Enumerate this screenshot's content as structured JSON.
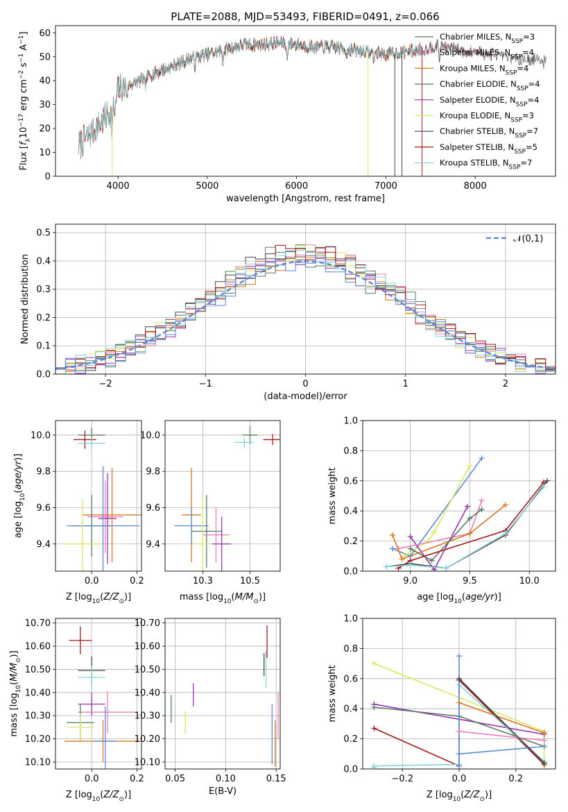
{
  "figure_title": "PLATE=2088, MJD=53493, FIBERID=0491, z=0.066",
  "colors": {
    "Chabrier MILES": "#5a7d5a",
    "Salpeter MILES": "#e87fb8",
    "Kroupa MILES": "#d9761f",
    "Chabrier ELODIE": "#52795e",
    "Salpeter ELODIE": "#9b2fae",
    "Kroupa ELODIE": "#d7e85e",
    "Chabrier STELIB": "#444444",
    "Salpeter STELIB": "#a4161a",
    "Kroupa STELIB": "#86d4dc",
    "blue_model": "#5b87d8"
  },
  "chart_data": [
    {
      "id": "spectrum",
      "type": "line",
      "title": "PLATE=2088, MJD=53493, FIBERID=0491, z=0.066",
      "xlabel": "wavelength [Angstrom, rest frame]",
      "ylabel": "Flux [f_λ 10^-17 erg cm^-2 s^-1 A^-1]",
      "xlim": [
        3300,
        8900
      ],
      "ylim": [
        0,
        63
      ],
      "xticks": [
        4000,
        5000,
        6000,
        7000,
        8000
      ],
      "yticks": [
        0,
        10,
        20,
        30,
        40,
        50,
        60
      ],
      "grid": false,
      "legend_position": "top-right",
      "series": [
        {
          "name": "Chabrier MILES, N_SSP=3",
          "color": "#5a7d5a",
          "wave_range": [
            3560,
            8200
          ]
        },
        {
          "name": "Salpeter MILES, N_SSP=4",
          "color": "#e87fb8",
          "wave_range": [
            3560,
            8200
          ]
        },
        {
          "name": "Kroupa MILES, N_SSP=4",
          "color": "#d9761f",
          "wave_range": [
            3560,
            7400
          ]
        },
        {
          "name": "Chabrier ELODIE, N_SSP=4",
          "color": "#52795e",
          "wave_range": [
            3900,
            6800
          ]
        },
        {
          "name": "Salpeter ELODIE, N_SSP=4",
          "color": "#9b2fae",
          "wave_range": [
            3900,
            6800
          ]
        },
        {
          "name": "Kroupa ELODIE, N_SSP=3",
          "color": "#d7e85e",
          "wave_range": [
            3900,
            6800
          ]
        },
        {
          "name": "Chabrier STELIB, N_SSP=7",
          "color": "#444444",
          "wave_range": [
            3560,
            8800
          ]
        },
        {
          "name": "Salpeter STELIB, N_SSP=5",
          "color": "#a4161a",
          "wave_range": [
            3560,
            7400
          ]
        },
        {
          "name": "Kroupa STELIB, N_SSP=7",
          "color": "#86d4dc",
          "wave_range": [
            3560,
            7400
          ]
        }
      ],
      "continuum": {
        "x": [
          3560,
          3700,
          3850,
          3950,
          4000,
          4100,
          4250,
          4400,
          4600,
          4800,
          5000,
          5200,
          5400,
          5600,
          5800,
          6000,
          6200,
          6400,
          6600,
          6800,
          7000,
          7200,
          7400,
          7600,
          7800,
          8000,
          8200,
          8400,
          8600,
          8800
        ],
        "y": [
          13,
          18,
          24,
          29,
          36,
          38,
          40,
          43,
          46,
          49,
          51,
          53,
          55,
          55,
          56,
          55,
          54,
          54,
          53,
          52,
          51,
          52,
          53,
          55,
          53,
          52,
          51,
          50,
          49,
          48
        ]
      }
    },
    {
      "id": "residual-histogram",
      "type": "bar",
      "xlabel": "(data-model)/error",
      "ylabel": "Normed distribution",
      "xlim": [
        -2.5,
        2.5
      ],
      "ylim": [
        0,
        0.53
      ],
      "xticks": [
        -2,
        -1,
        0,
        1,
        2
      ],
      "yticks": [
        0.0,
        0.1,
        0.2,
        0.3,
        0.4,
        0.5
      ],
      "grid": true,
      "legend_position": "top-right",
      "legend_label": "𝒩(0,1)",
      "bin_width": 0.1,
      "reference": {
        "name": "𝒩(0,1)",
        "mean": 0,
        "sigma": 1,
        "style": "dashed",
        "color": "#5b87d8"
      }
    },
    {
      "id": "age-vs-metallicity",
      "type": "scatter",
      "xlabel": "Z [log10(Z/Z⊙)]",
      "ylabel": "age [log10(age/yr)]",
      "xlim": [
        -0.16,
        0.22
      ],
      "ylim": [
        9.25,
        10.08
      ],
      "xticks": [
        0.0,
        0.2
      ],
      "yticks": [
        9.4,
        9.6,
        9.8,
        10.0
      ],
      "grid": true,
      "points": [
        {
          "series": "Chabrier MILES",
          "x": 0.0,
          "y": 10.0,
          "xerr": 0.06,
          "yerr": 0.04
        },
        {
          "series": "Salpeter STELIB",
          "x": -0.03,
          "y": 9.975,
          "xerr": 0.05,
          "yerr": 0.05
        },
        {
          "series": "Kroupa STELIB",
          "x": 0.0,
          "y": 9.955,
          "xerr": 0.06,
          "yerr": 0.03
        },
        {
          "series": "Salpeter MILES",
          "x": 0.06,
          "y": 9.55,
          "xerr": 0.08,
          "yerr": 0.2
        },
        {
          "series": "Salpeter ELODIE",
          "x": 0.07,
          "y": 9.54,
          "xerr": 0.04,
          "yerr": 0.25
        },
        {
          "series": "Kroupa MILES",
          "x": 0.09,
          "y": 9.56,
          "xerr": 0.13,
          "yerr": 0.26
        },
        {
          "series": "Chabrier ELODIE",
          "x": 0.0,
          "y": 9.5,
          "xerr": 0.09,
          "yerr": 0.17
        },
        {
          "series": "blue_model",
          "x": 0.05,
          "y": 9.5,
          "xerr": 0.16,
          "yerr": 0.33
        },
        {
          "series": "Kroupa ELODIE",
          "x": -0.04,
          "y": 9.4,
          "xerr": 0.08,
          "yerr": 0.25
        }
      ]
    },
    {
      "id": "age-vs-mass",
      "type": "scatter",
      "xlabel": "mass [log10(M/M⊙)]",
      "ylabel": "",
      "xlim": [
        10.05,
        10.66
      ],
      "ylim": [
        9.25,
        10.08
      ],
      "xticks": [
        10.25,
        10.5
      ],
      "yticks": [
        9.4,
        9.6,
        9.8,
        10.0
      ],
      "grid": true,
      "points": [
        {
          "series": "Salpeter STELIB",
          "x": 10.62,
          "y": 9.975,
          "xerr": 0.05,
          "yerr": 0.03
        },
        {
          "series": "Chabrier MILES",
          "x": 10.5,
          "y": 10.0,
          "xerr": 0.04,
          "yerr": 0.05
        },
        {
          "series": "Kroupa STELIB",
          "x": 10.47,
          "y": 9.96,
          "xerr": 0.05,
          "yerr": 0.03
        },
        {
          "series": "Kroupa MILES",
          "x": 10.19,
          "y": 9.56,
          "xerr": 0.05,
          "yerr": 0.26
        },
        {
          "series": "blue_model",
          "x": 10.19,
          "y": 9.5,
          "xerr": 0.09,
          "yerr": 0.1
        },
        {
          "series": "Chabrier ELODIE",
          "x": 10.27,
          "y": 9.47,
          "xerr": 0.08,
          "yerr": 0.2
        },
        {
          "series": "Salpeter MILES",
          "x": 10.32,
          "y": 9.45,
          "xerr": 0.07,
          "yerr": 0.15
        },
        {
          "series": "Salpeter ELODIE",
          "x": 10.35,
          "y": 9.4,
          "xerr": 0.05,
          "yerr": 0.15
        },
        {
          "series": "Kroupa ELODIE",
          "x": 10.25,
          "y": 9.4,
          "xerr": 0.04,
          "yerr": 0.25
        }
      ]
    },
    {
      "id": "mass-weight-vs-age",
      "type": "line",
      "xlabel": "age [log10(age/yr)]",
      "ylabel": "mass weight",
      "xlim": [
        8.6,
        10.22
      ],
      "ylim": [
        0.0,
        1.0
      ],
      "xticks": [
        9.0,
        9.5,
        10.0
      ],
      "yticks": [
        0.0,
        0.2,
        0.4,
        0.6,
        0.8,
        1.0
      ],
      "grid": true,
      "series": [
        {
          "name": "blue_model",
          "x": [
            8.85,
            9.0,
            9.6
          ],
          "y": [
            0.15,
            0.1,
            0.75
          ]
        },
        {
          "name": "Kroupa ELODIE",
          "x": [
            8.95,
            9.15,
            9.2,
            9.5
          ],
          "y": [
            0.1,
            0.2,
            0.26,
            0.7
          ]
        },
        {
          "name": "Salpeter ELODIE",
          "x": [
            9.0,
            9.2,
            9.48
          ],
          "y": [
            0.23,
            0.01,
            0.43
          ]
        },
        {
          "name": "Salpeter MILES",
          "x": [
            8.9,
            9.5,
            9.6
          ],
          "y": [
            0.15,
            0.25,
            0.47
          ]
        },
        {
          "name": "Kroupa MILES",
          "x": [
            8.85,
            8.93,
            9.5,
            9.8
          ],
          "y": [
            0.24,
            0.08,
            0.25,
            0.44
          ]
        },
        {
          "name": "Chabrier ELODIE",
          "x": [
            9.0,
            9.18,
            9.5,
            9.6
          ],
          "y": [
            0.15,
            0.07,
            0.35,
            0.41
          ]
        },
        {
          "name": "Salpeter STELIB",
          "x": [
            8.9,
            9.0,
            9.8,
            10.12
          ],
          "y": [
            0.02,
            0.07,
            0.27,
            0.59
          ]
        },
        {
          "name": "Chabrier STELIB",
          "x": [
            8.8,
            9.0,
            9.3,
            9.8,
            10.15
          ],
          "y": [
            0.03,
            0.05,
            0.02,
            0.24,
            0.6
          ]
        },
        {
          "name": "Kroupa STELIB",
          "x": [
            8.8,
            9.0,
            9.3,
            9.8,
            10.12
          ],
          "y": [
            0.03,
            0.04,
            0.02,
            0.25,
            0.56
          ]
        }
      ]
    },
    {
      "id": "mass-vs-metallicity",
      "type": "scatter",
      "xlabel": "Z [log10(Z/Z⊙)]",
      "ylabel": "mass [log10(M/M⊙)]",
      "xlim": [
        -0.16,
        0.22
      ],
      "ylim": [
        10.07,
        10.72
      ],
      "xticks": [
        0.0,
        0.2
      ],
      "yticks": [
        10.1,
        10.2,
        10.3,
        10.4,
        10.5,
        10.6,
        10.7
      ],
      "grid": true,
      "points": [
        {
          "series": "Salpeter STELIB",
          "x": -0.05,
          "y": 10.625,
          "xerr": 0.05,
          "yerr": 0.06
        },
        {
          "series": "Chabrier STELIB",
          "x": 0.0,
          "y": 10.495,
          "xerr": 0.06,
          "yerr": 0.06
        },
        {
          "series": "Kroupa STELIB",
          "x": 0.0,
          "y": 10.465,
          "xerr": 0.06,
          "yerr": 0.05
        },
        {
          "series": "Salpeter ELODIE",
          "x": 0.0,
          "y": 10.35,
          "xerr": 0.06,
          "yerr": 0.05
        },
        {
          "series": "Salpeter MILES",
          "x": 0.07,
          "y": 10.315,
          "xerr": 0.13,
          "yerr": 0.09
        },
        {
          "series": "Chabrier ELODIE",
          "x": -0.05,
          "y": 10.27,
          "xerr": 0.06,
          "yerr": 0.08
        },
        {
          "series": "Kroupa ELODIE",
          "x": -0.05,
          "y": 10.25,
          "xerr": 0.06,
          "yerr": 0.06
        },
        {
          "series": "Kroupa MILES",
          "x": 0.05,
          "y": 10.19,
          "xerr": 0.17,
          "yerr": 0.09
        },
        {
          "series": "blue_model",
          "x": 0.06,
          "y": 10.19,
          "xerr": 0.05,
          "yerr": 0.15
        }
      ]
    },
    {
      "id": "mass-vs-ebv",
      "type": "scatter",
      "xlabel": "E(B-V)",
      "ylabel": "",
      "xlim": [
        0.04,
        0.154
      ],
      "ylim": [
        10.07,
        10.72
      ],
      "xticks": [
        0.05,
        0.1,
        0.15
      ],
      "yticks": [
        10.1,
        10.2,
        10.3,
        10.4,
        10.5,
        10.6,
        10.7
      ],
      "grid": true,
      "points": [
        {
          "series": "Chabrier ELODIE",
          "x": 0.046,
          "y": 10.33,
          "xerr": 0,
          "yerr": 0.06
        },
        {
          "series": "Kroupa ELODIE",
          "x": 0.06,
          "y": 10.27,
          "xerr": 0,
          "yerr": 0.05
        },
        {
          "series": "Salpeter ELODIE",
          "x": 0.068,
          "y": 10.39,
          "xerr": 0,
          "yerr": 0.05
        },
        {
          "series": "Chabrier STELIB",
          "x": 0.138,
          "y": 10.52,
          "xerr": 0,
          "yerr": 0.05
        },
        {
          "series": "Kroupa STELIB",
          "x": 0.14,
          "y": 10.5,
          "xerr": 0,
          "yerr": 0.08
        },
        {
          "series": "Salpeter STELIB",
          "x": 0.141,
          "y": 10.62,
          "xerr": 0,
          "yerr": 0.07
        },
        {
          "series": "blue_model",
          "x": 0.146,
          "y": 10.22,
          "xerr": 0,
          "yerr": 0.13
        },
        {
          "series": "Kroupa MILES",
          "x": 0.149,
          "y": 10.18,
          "xerr": 0,
          "yerr": 0.1
        },
        {
          "series": "Salpeter MILES",
          "x": 0.152,
          "y": 10.3,
          "xerr": 0,
          "yerr": 0.1
        }
      ]
    },
    {
      "id": "mass-weight-vs-metallicity",
      "type": "line",
      "xlabel": "Z [log10(Z/Z⊙)]",
      "ylabel": "mass weight",
      "xlim": [
        -0.34,
        0.34
      ],
      "ylim": [
        0.0,
        1.0
      ],
      "xticks": [
        -0.2,
        0.0,
        0.2
      ],
      "yticks": [
        0.0,
        0.2,
        0.4,
        0.6,
        0.8,
        1.0
      ],
      "grid": true,
      "series": [
        {
          "name": "Kroupa ELODIE",
          "x": [
            -0.3,
            0.3,
            0.3
          ],
          "y": [
            0.7,
            0.25,
            0.02
          ]
        },
        {
          "name": "Salpeter ELODIE",
          "x": [
            -0.3,
            0.3
          ],
          "y": [
            0.43,
            0.23
          ]
        },
        {
          "name": "Chabrier ELODIE",
          "x": [
            -0.3,
            0.0,
            0.3
          ],
          "y": [
            0.41,
            0.35,
            0.15
          ]
        },
        {
          "name": "Salpeter STELIB",
          "x": [
            -0.3,
            0.0,
            0.0,
            0.3
          ],
          "y": [
            0.27,
            0.02,
            0.59,
            0.03
          ]
        },
        {
          "name": "Kroupa STELIB",
          "x": [
            -0.3,
            -0.3,
            0.0,
            0.0,
            0.3
          ],
          "y": [
            0.01,
            0.02,
            0.03,
            0.56,
            0.05
          ]
        },
        {
          "name": "blue_model",
          "x": [
            0.0,
            0.0,
            0.0,
            0.3
          ],
          "y": [
            0.75,
            0.02,
            0.1,
            0.15
          ]
        },
        {
          "name": "Salpeter MILES",
          "x": [
            0.0,
            0.3
          ],
          "y": [
            0.25,
            0.19
          ]
        },
        {
          "name": "Kroupa MILES",
          "x": [
            0.0,
            0.3
          ],
          "y": [
            0.44,
            0.24
          ]
        },
        {
          "name": "Chabrier STELIB",
          "x": [
            0.0,
            0.3
          ],
          "y": [
            0.6,
            0.04
          ]
        }
      ]
    }
  ]
}
